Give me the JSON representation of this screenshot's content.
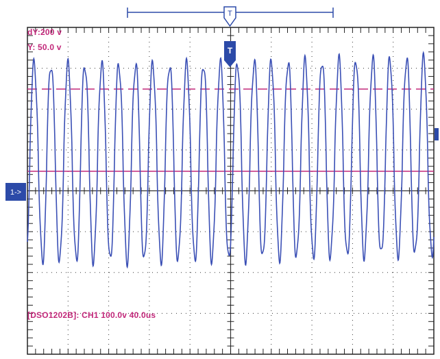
{
  "cursor_readouts": {
    "dy": "dY:200 v",
    "y": "Y:  50.0 v"
  },
  "trigger_marker": {
    "label": "T"
  },
  "channel_marker": {
    "label": "1->"
  },
  "status_bar": {
    "text": "[DSO1202B]: CH1 100.0v 40.0us"
  },
  "colors": {
    "trace": "#3a4fb5",
    "cursor": "#c2287a",
    "grid": "#222222",
    "marker": "#2c4aa8",
    "background": "#ffffff"
  },
  "icons": [
    "trigger-marker-icon",
    "channel-1-marker-icon",
    "trigger-position-bracket-icon"
  ]
}
